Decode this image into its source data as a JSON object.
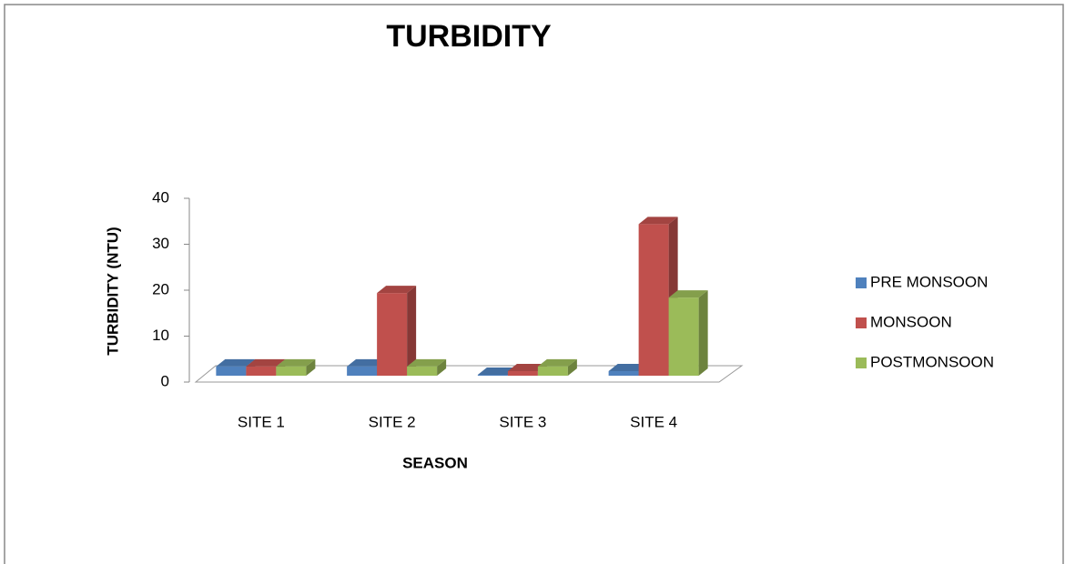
{
  "chart_data": {
    "type": "bar3d",
    "title": "TURBIDITY",
    "x_label": "SEASON",
    "y_label": "TURBIDITY (NTU)",
    "categories": [
      "SITE 1",
      "SITE 2",
      "SITE 3",
      "SITE 4"
    ],
    "series": [
      {
        "name": "PRE MONSOON",
        "color": "#4f81bd",
        "values": [
          2,
          2,
          0.2,
          1
        ]
      },
      {
        "name": "MONSOON",
        "color": "#c0504d",
        "values": [
          2,
          18,
          1,
          33
        ]
      },
      {
        "name": "POSTMONSOON",
        "color": "#9bbb59",
        "values": [
          2,
          2,
          2,
          17
        ]
      }
    ],
    "ylim": [
      0,
      40
    ],
    "yticks": [
      0,
      10,
      20,
      30,
      40
    ],
    "legend": "right"
  }
}
